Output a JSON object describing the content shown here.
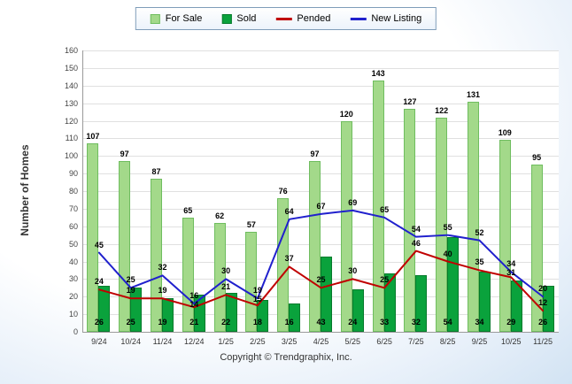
{
  "legend": {
    "position": "top",
    "items": [
      "For Sale",
      "Sold",
      "Pended",
      "New Listing"
    ]
  },
  "chart_data": {
    "type": "bar+line",
    "categories": [
      "9/24",
      "10/24",
      "11/24",
      "12/24",
      "1/25",
      "2/25",
      "3/25",
      "4/25",
      "5/25",
      "6/25",
      "7/25",
      "8/25",
      "9/25",
      "10/25",
      "11/25"
    ],
    "series": [
      {
        "name": "For Sale",
        "type": "bar",
        "color": "#a3d98a",
        "border": "#6fbd5f",
        "values": [
          107,
          97,
          87,
          65,
          62,
          57,
          76,
          97,
          120,
          143,
          127,
          122,
          131,
          109,
          95
        ]
      },
      {
        "name": "Sold",
        "type": "bar",
        "color": "#0aa23c",
        "border": "#067a2c",
        "values": [
          26,
          25,
          19,
          21,
          22,
          18,
          16,
          43,
          24,
          33,
          32,
          54,
          34,
          29,
          26
        ]
      },
      {
        "name": "Pended",
        "type": "line",
        "color": "#c00000",
        "values": [
          24,
          19,
          19,
          14,
          21,
          15,
          37,
          25,
          30,
          25,
          46,
          40,
          35,
          31,
          12
        ]
      },
      {
        "name": "New Listing",
        "type": "line",
        "color": "#2020cd",
        "values": [
          45,
          25,
          32,
          16,
          30,
          19,
          64,
          67,
          69,
          65,
          54,
          55,
          52,
          34,
          20
        ]
      }
    ],
    "title": "",
    "xlabel": "",
    "ylabel": "Number of Homes",
    "ylim": [
      0,
      160
    ],
    "ytick_step": 10,
    "grid": true,
    "legend_position": "top"
  },
  "footer": {
    "copyright": "Copyright © Trendgraphix, Inc."
  }
}
